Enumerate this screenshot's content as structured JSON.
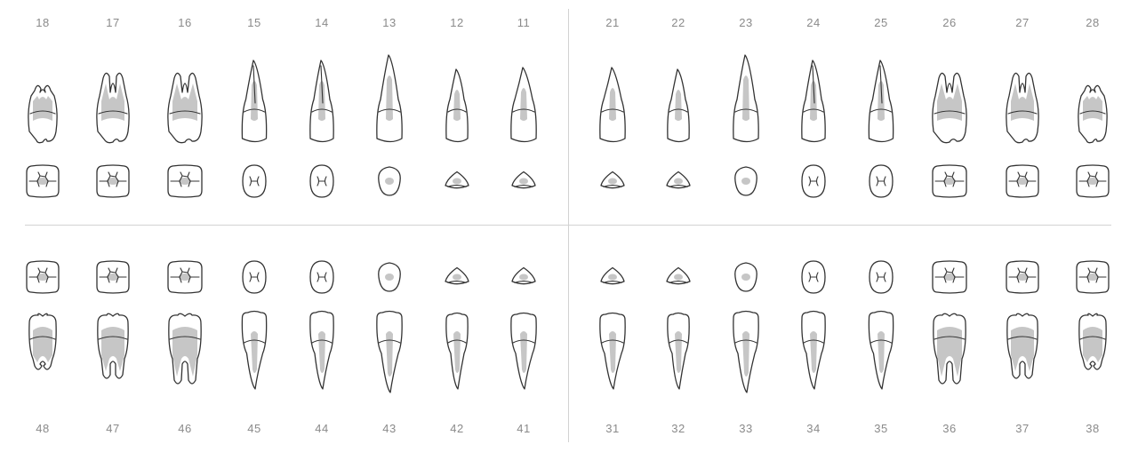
{
  "chart": {
    "quadrants": [
      {
        "id": "upper-right",
        "teeth": [
          "18",
          "17",
          "16",
          "15",
          "14",
          "13",
          "12",
          "11"
        ]
      },
      {
        "id": "upper-left",
        "teeth": [
          "21",
          "22",
          "23",
          "24",
          "25",
          "26",
          "27",
          "28"
        ]
      },
      {
        "id": "lower-right",
        "teeth": [
          "48",
          "47",
          "46",
          "45",
          "44",
          "43",
          "42",
          "41"
        ]
      },
      {
        "id": "lower-left",
        "teeth": [
          "31",
          "32",
          "33",
          "34",
          "35",
          "36",
          "37",
          "38"
        ]
      }
    ]
  },
  "colors": {
    "outline": "#333333",
    "pulp": "#c6c6c6",
    "number": "#8a8a8a",
    "divider": "#d2d2d2",
    "background": "#ffffff"
  }
}
